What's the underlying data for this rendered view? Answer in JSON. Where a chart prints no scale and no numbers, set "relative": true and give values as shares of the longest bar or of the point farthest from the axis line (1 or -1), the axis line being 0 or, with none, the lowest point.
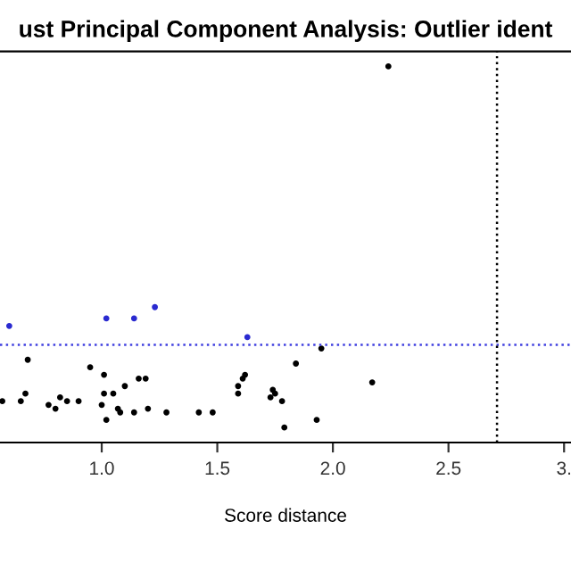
{
  "chart_data": {
    "type": "scatter",
    "title": "ust Principal Component Analysis: Outlier ident",
    "xlabel": "Score distance",
    "relative": true,
    "xlim": [
      0.56,
      3.03
    ],
    "xticks": [
      {
        "value": 1.0,
        "label": "1.0"
      },
      {
        "value": 1.5,
        "label": "1.5"
      },
      {
        "value": 2.0,
        "label": "2.0"
      },
      {
        "value": 2.5,
        "label": "2.5"
      },
      {
        "value": 3.0,
        "label": "3."
      }
    ],
    "marker": "circle",
    "grid": false,
    "legend": false,
    "series": [
      {
        "color": "#000000",
        "x": [
          0.57,
          0.68,
          0.65,
          0.67,
          0.77,
          0.8,
          0.82,
          0.85,
          0.9,
          0.95,
          1.01,
          1.01,
          1.05,
          1.0,
          1.02,
          1.07,
          1.08,
          1.1,
          1.14,
          1.16,
          1.19,
          1.2,
          1.28,
          1.42,
          1.48,
          1.59,
          1.59,
          1.61,
          1.62,
          1.73,
          1.74,
          1.75,
          1.78,
          1.79,
          1.84,
          1.93,
          1.95,
          2.17,
          2.24
        ],
        "values": [
          0.11,
          0.22,
          0.11,
          0.13,
          0.1,
          0.09,
          0.12,
          0.11,
          0.11,
          0.2,
          0.18,
          0.13,
          0.13,
          0.1,
          0.06,
          0.09,
          0.08,
          0.15,
          0.08,
          0.17,
          0.17,
          0.09,
          0.08,
          0.08,
          0.08,
          0.13,
          0.15,
          0.17,
          0.18,
          0.12,
          0.14,
          0.13,
          0.11,
          0.04,
          0.21,
          0.06,
          0.25,
          0.16,
          1.0
        ]
      },
      {
        "color": "#2a2ad0",
        "x": [
          0.6,
          1.02,
          1.14,
          1.23,
          1.63
        ],
        "values": [
          0.31,
          0.33,
          0.33,
          0.36,
          0.28
        ]
      }
    ],
    "ref_lines": [
      {
        "axis": "y",
        "value": 0.26,
        "color": "#4040e0",
        "line_style": "dotted"
      },
      {
        "axis": "x",
        "value": 2.71,
        "color": "#000000",
        "line_style": "dotted"
      }
    ]
  }
}
